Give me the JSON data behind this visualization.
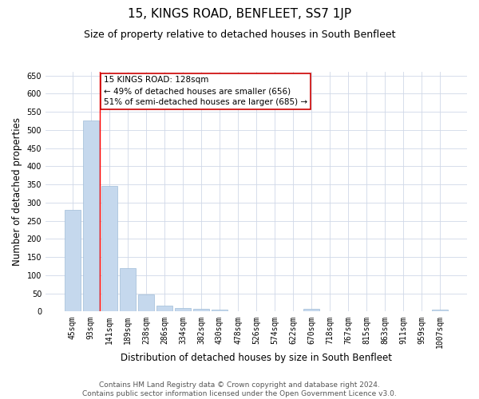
{
  "title": "15, KINGS ROAD, BENFLEET, SS7 1JP",
  "subtitle": "Size of property relative to detached houses in South Benfleet",
  "xlabel": "Distribution of detached houses by size in South Benfleet",
  "ylabel": "Number of detached properties",
  "categories": [
    "45sqm",
    "93sqm",
    "141sqm",
    "189sqm",
    "238sqm",
    "286sqm",
    "334sqm",
    "382sqm",
    "430sqm",
    "478sqm",
    "526sqm",
    "574sqm",
    "622sqm",
    "670sqm",
    "718sqm",
    "767sqm",
    "815sqm",
    "863sqm",
    "911sqm",
    "959sqm",
    "1007sqm"
  ],
  "values": [
    280,
    525,
    345,
    120,
    47,
    16,
    10,
    8,
    5,
    0,
    0,
    0,
    0,
    7,
    0,
    0,
    0,
    0,
    0,
    0,
    5
  ],
  "bar_color": "#c5d8ed",
  "bar_edgecolor": "#a0bcd8",
  "annotation_line1": "15 KINGS ROAD: 128sqm",
  "annotation_line2": "← 49% of detached houses are smaller (656)",
  "annotation_line3": "51% of semi-detached houses are larger (685) →",
  "annotation_box_color": "#ffffff",
  "annotation_box_edgecolor": "#cc0000",
  "ylim": [
    0,
    660
  ],
  "yticks": [
    0,
    50,
    100,
    150,
    200,
    250,
    300,
    350,
    400,
    450,
    500,
    550,
    600,
    650
  ],
  "footer_line1": "Contains HM Land Registry data © Crown copyright and database right 2024.",
  "footer_line2": "Contains public sector information licensed under the Open Government Licence v3.0.",
  "background_color": "#ffffff",
  "grid_color": "#d0d8e8",
  "title_fontsize": 11,
  "subtitle_fontsize": 9,
  "axis_label_fontsize": 8.5,
  "tick_fontsize": 7,
  "annotation_fontsize": 7.5,
  "footer_fontsize": 6.5
}
